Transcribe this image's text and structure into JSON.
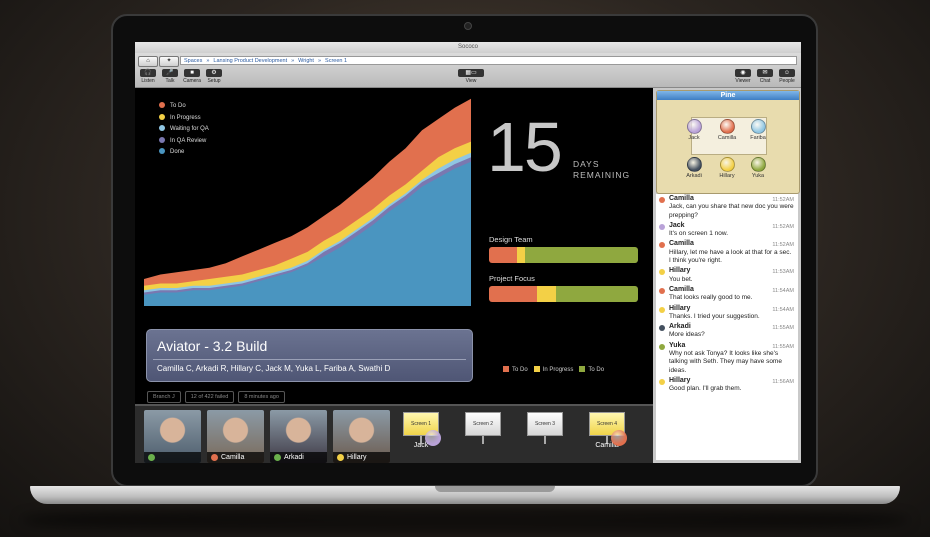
{
  "window": {
    "title": "Sococo"
  },
  "breadcrumbs": [
    "Spaces",
    "Lansing Product Development",
    "Wright",
    "Screen 1"
  ],
  "toolbar": {
    "left": [
      {
        "label": "Listen",
        "icon": "headphones-icon"
      },
      {
        "label": "Talk",
        "icon": "mic-icon"
      },
      {
        "label": "Camera",
        "icon": "camera-icon"
      },
      {
        "label": "Setup",
        "icon": "gear-icon"
      }
    ],
    "center": {
      "label": "View"
    },
    "right": [
      {
        "label": "Viewer",
        "icon": "eye-icon"
      },
      {
        "label": "Chat",
        "icon": "chat-icon"
      },
      {
        "label": "People",
        "icon": "people-icon"
      }
    ]
  },
  "chart_data": {
    "type": "area",
    "stacked": true,
    "series": [
      {
        "name": "To Do",
        "color": "#e1704e"
      },
      {
        "name": "In Progress",
        "color": "#f3d046"
      },
      {
        "name": "Waiting for QA",
        "color": "#8fc6e3"
      },
      {
        "name": "In QA Review",
        "color": "#7a78b0"
      },
      {
        "name": "Done",
        "color": "#4a95c0"
      }
    ],
    "x": [
      0,
      1,
      2,
      3,
      4,
      5,
      6,
      7,
      8,
      9,
      10,
      11,
      12,
      13,
      14,
      15,
      16,
      17,
      18,
      19,
      20
    ],
    "totals": [
      12,
      14,
      15,
      16,
      17,
      19,
      22,
      25,
      28,
      31,
      35,
      40,
      45,
      51,
      57,
      64,
      70,
      78,
      83,
      88,
      92
    ],
    "done": [
      5,
      6,
      6,
      7,
      7,
      8,
      9,
      11,
      13,
      15,
      18,
      22,
      26,
      31,
      36,
      42,
      47,
      53,
      57,
      61,
      64
    ],
    "qa_review": [
      1,
      1,
      1,
      1,
      1,
      1,
      1,
      1,
      1,
      1,
      1,
      2,
      2,
      2,
      2,
      2,
      2,
      2,
      2,
      2,
      2
    ],
    "waiting_qa": [
      1,
      1,
      1,
      1,
      1,
      1,
      1,
      1,
      1,
      1,
      1,
      1,
      1,
      1,
      1,
      1,
      1,
      1,
      2,
      2,
      2
    ],
    "in_progress": [
      2,
      2,
      2,
      2,
      3,
      3,
      3,
      3,
      3,
      4,
      4,
      4,
      4,
      4,
      4,
      4,
      4,
      4,
      5,
      5,
      5
    ]
  },
  "countdown": {
    "number": "15",
    "line1": "DAYS",
    "line2": "REMAINING"
  },
  "teams": [
    {
      "name": "Design Team",
      "todo": 0.19,
      "progress": 0.05,
      "done": 0.76
    },
    {
      "name": "Project Focus",
      "todo": 0.32,
      "progress": 0.13,
      "done": 0.55
    }
  ],
  "bar_legend": [
    {
      "name": "To Do",
      "color": "#e1704e"
    },
    {
      "name": "In Progress",
      "color": "#f3d046"
    },
    {
      "name": "To Do",
      "color": "#8fa83f"
    }
  ],
  "build": {
    "title": "Aviator - 3.2 Build",
    "people": "Camilla C, Arkadi R, Hillary C, Jack M, Yuka L, Fariba A, Swathi D",
    "chips": [
      "Branch J",
      "12 of 422 failed",
      "8 minutes ago"
    ]
  },
  "videos": [
    {
      "name": "",
      "dot": "#6ab04c",
      "bg": "#4d5d6c"
    },
    {
      "name": "Camilla",
      "dot": "#e1704e",
      "bg": "#7a6a5a"
    },
    {
      "name": "Arkadi",
      "dot": "#6ab04c",
      "bg": "#3f3a46"
    },
    {
      "name": "Hillary",
      "dot": "#f3d046",
      "bg": "#6c5b4e"
    }
  ],
  "screens": [
    {
      "label": "Screen 1",
      "who": "Jack",
      "on": true,
      "avatar": "#b9a2d8"
    },
    {
      "label": "Screen 2",
      "who": "",
      "on": false,
      "avatar": ""
    },
    {
      "label": "Screen 3",
      "who": "",
      "on": false,
      "avatar": ""
    },
    {
      "label": "Screen 4",
      "who": "Camilla",
      "on": true,
      "avatar": "#e1704e"
    }
  ],
  "room": {
    "name": "Pine",
    "people": [
      {
        "name": "Jack",
        "color": "#b9a2d8"
      },
      {
        "name": "Camilla",
        "color": "#e1704e"
      },
      {
        "name": "Fariba",
        "color": "#8fc6e3"
      },
      {
        "name": "Arkadi",
        "color": "#44505f"
      },
      {
        "name": "Hillary",
        "color": "#f3d046"
      },
      {
        "name": "Yuka",
        "color": "#8fa83f"
      }
    ]
  },
  "chat": [
    {
      "name": "Camilla",
      "time": "11:52AM",
      "text": "Jack, can you share that new doc you were prepping?",
      "color": "#e1704e"
    },
    {
      "name": "Jack",
      "time": "11:52AM",
      "text": "It's on screen 1 now.",
      "color": "#b9a2d8"
    },
    {
      "name": "Camilla",
      "time": "11:52AM",
      "text": "Hillary, let me have a look at that for a sec. I think you're right.",
      "color": "#e1704e"
    },
    {
      "name": "Hillary",
      "time": "11:53AM",
      "text": "You bet.",
      "color": "#f3d046"
    },
    {
      "name": "Camilla",
      "time": "11:54AM",
      "text": "That looks really good to me.",
      "color": "#e1704e"
    },
    {
      "name": "Hillary",
      "time": "11:54AM",
      "text": "Thanks. I tried your suggestion.",
      "color": "#f3d046"
    },
    {
      "name": "Arkadi",
      "time": "11:55AM",
      "text": "More ideas?",
      "color": "#44505f"
    },
    {
      "name": "Yuka",
      "time": "11:55AM",
      "text": "Why not ask Tonya? It looks like she's talking with Seth. They may have some ideas.",
      "color": "#8fa83f"
    },
    {
      "name": "Hillary",
      "time": "11:56AM",
      "text": "Good plan. I'll grab them.",
      "color": "#f3d046"
    }
  ]
}
